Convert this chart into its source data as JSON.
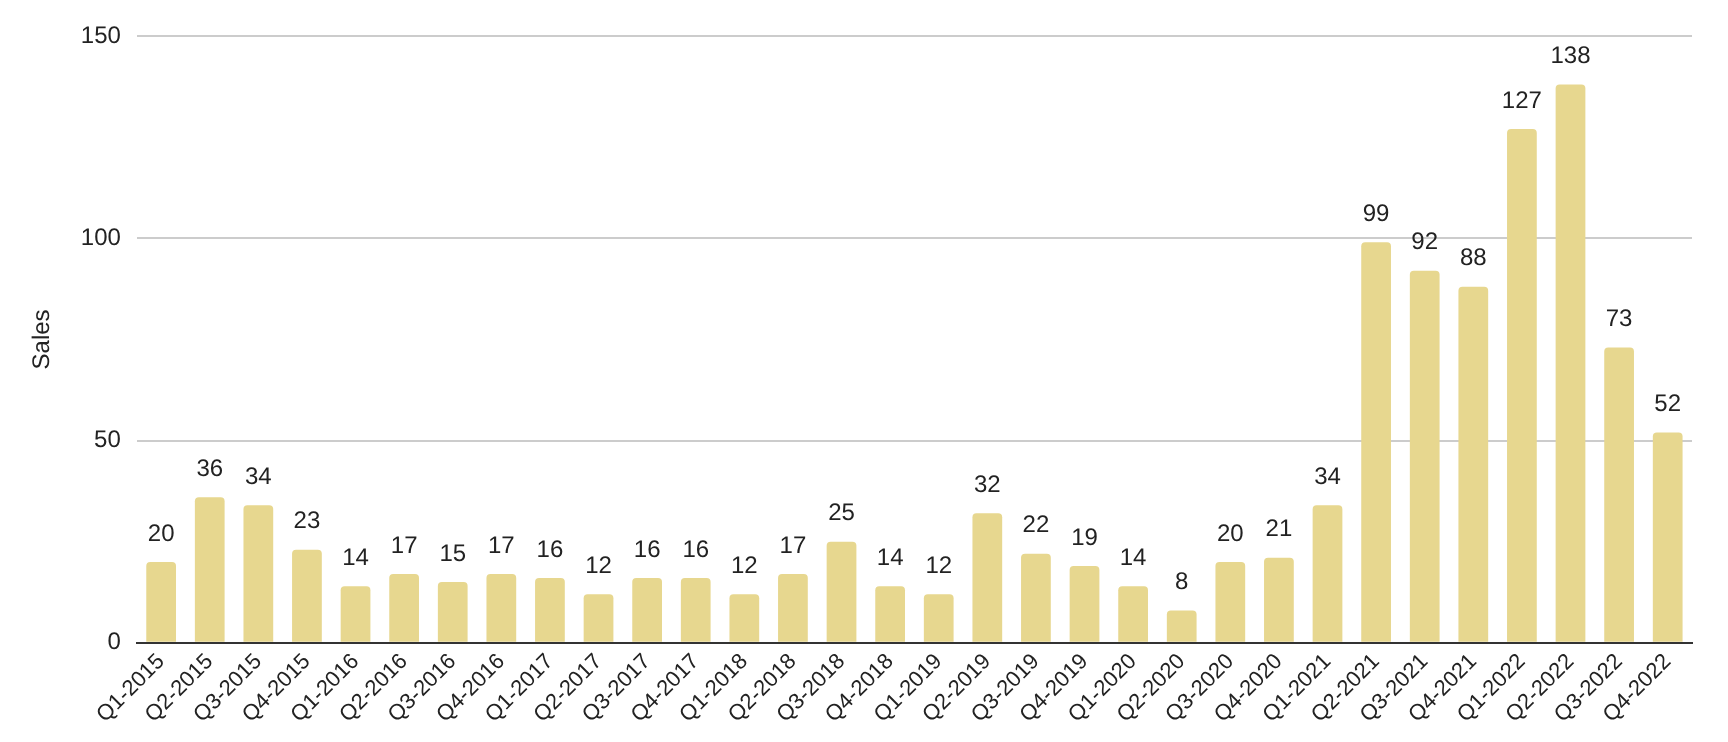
{
  "chart_data": {
    "type": "bar",
    "ylabel": "Sales",
    "categories": [
      "Q1-2015",
      "Q2-2015",
      "Q3-2015",
      "Q4-2015",
      "Q1-2016",
      "Q2-2016",
      "Q3-2016",
      "Q4-2016",
      "Q1-2017",
      "Q2-2017",
      "Q3-2017",
      "Q4-2017",
      "Q1-2018",
      "Q2-2018",
      "Q3-2018",
      "Q4-2018",
      "Q1-2019",
      "Q2-2019",
      "Q3-2019",
      "Q4-2019",
      "Q1-2020",
      "Q2-2020",
      "Q3-2020",
      "Q4-2020",
      "Q1-2021",
      "Q2-2021",
      "Q3-2021",
      "Q4-2021",
      "Q1-2022",
      "Q2-2022",
      "Q3-2022",
      "Q4-2022"
    ],
    "values": [
      20,
      36,
      34,
      23,
      14,
      17,
      15,
      17,
      16,
      12,
      16,
      16,
      12,
      17,
      25,
      14,
      12,
      32,
      22,
      19,
      14,
      8,
      20,
      21,
      34,
      99,
      92,
      88,
      127,
      138,
      73,
      52
    ],
    "color": "#e7d78f",
    "ylim": [
      0,
      150
    ],
    "yticks": [
      0,
      50,
      100,
      150
    ],
    "grid": "y",
    "data_labels": true,
    "legend": false
  }
}
